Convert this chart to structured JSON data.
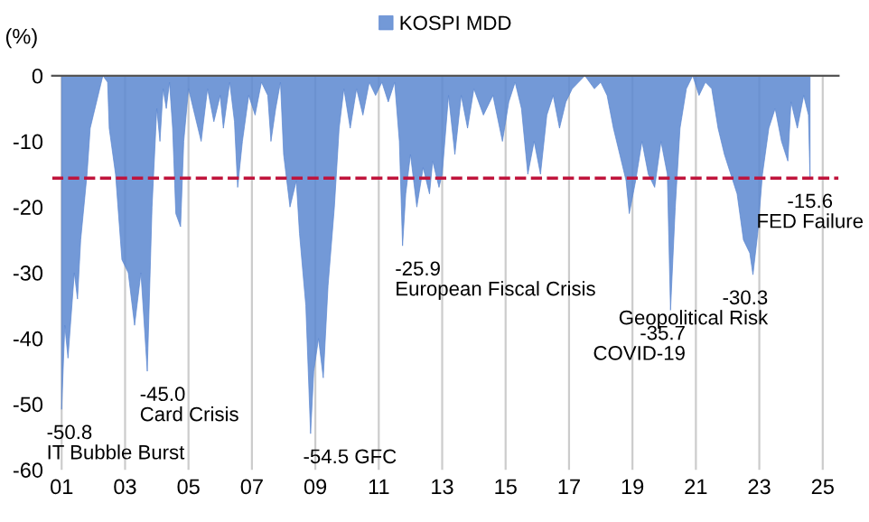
{
  "chart_data": {
    "type": "area",
    "ylabel": "(%)",
    "x": [
      2001.0,
      2001.1,
      2001.2,
      2001.4,
      2001.5,
      2001.6,
      2001.8,
      2001.9,
      2002.0,
      2002.2,
      2002.3,
      2002.45,
      2002.5,
      2002.7,
      2002.9,
      2003.1,
      2003.3,
      2003.5,
      2003.7,
      2003.85,
      2004.0,
      2004.1,
      2004.2,
      2004.3,
      2004.4,
      2004.5,
      2004.6,
      2004.75,
      2004.85,
      2005.0,
      2005.2,
      2005.4,
      2005.6,
      2005.8,
      2006.0,
      2006.1,
      2006.3,
      2006.45,
      2006.55,
      2006.7,
      2006.9,
      2007.1,
      2007.3,
      2007.5,
      2007.6,
      2007.75,
      2007.9,
      2008.0,
      2008.2,
      2008.4,
      2008.5,
      2008.7,
      2008.85,
      2008.95,
      2009.1,
      2009.25,
      2009.4,
      2009.6,
      2009.75,
      2009.9,
      2010.1,
      2010.3,
      2010.5,
      2010.7,
      2010.9,
      2011.1,
      2011.3,
      2011.5,
      2011.65,
      2011.75,
      2011.85,
      2012.0,
      2012.2,
      2012.4,
      2012.6,
      2012.7,
      2012.9,
      2013.0,
      2013.2,
      2013.4,
      2013.6,
      2013.8,
      2014.0,
      2014.3,
      2014.6,
      2014.9,
      2015.1,
      2015.3,
      2015.5,
      2015.7,
      2015.9,
      2016.1,
      2016.3,
      2016.5,
      2016.7,
      2016.9,
      2017.1,
      2017.3,
      2017.5,
      2017.8,
      2018.0,
      2018.2,
      2018.4,
      2018.6,
      2018.8,
      2018.9,
      2019.1,
      2019.3,
      2019.5,
      2019.7,
      2019.9,
      2020.1,
      2020.2,
      2020.35,
      2020.5,
      2020.7,
      2020.9,
      2021.1,
      2021.3,
      2021.5,
      2021.7,
      2021.9,
      2022.1,
      2022.3,
      2022.5,
      2022.7,
      2022.8,
      2022.95,
      2023.1,
      2023.3,
      2023.5,
      2023.7,
      2023.9,
      2024.0,
      2024.2,
      2024.4,
      2024.55,
      2024.6
    ],
    "series": [
      {
        "name": "KOSPI MDD",
        "color": "#5b87d0",
        "values": [
          -50.8,
          -38,
          -43,
          -30,
          -34,
          -25,
          -15,
          -8,
          -6,
          -2,
          0,
          -1,
          -8,
          -15,
          -28,
          -30,
          -38,
          -30,
          -45,
          -20,
          -5,
          -10,
          -2,
          -5,
          -1,
          -8,
          -21,
          -23,
          -10,
          -2,
          -6,
          -10,
          -2,
          -7,
          -3,
          -8,
          -1,
          -7,
          -17,
          -10,
          -3,
          -6,
          -1,
          -3,
          -10,
          -5,
          -1,
          -12,
          -20,
          -16,
          -24,
          -35,
          -54.5,
          -45,
          -40,
          -46,
          -32,
          -20,
          -8,
          -2,
          -8,
          -2,
          -6,
          -1,
          -3,
          -1,
          -4,
          -1,
          -10,
          -25.9,
          -18,
          -12,
          -20,
          -14,
          -18,
          -13,
          -17,
          -15,
          -3,
          -12,
          -3,
          -8,
          -2,
          -6,
          -3,
          -10,
          -4,
          -1,
          -5,
          -15,
          -10,
          -15,
          -6,
          -3,
          -8,
          -4,
          -2,
          -1,
          0,
          -2,
          -1,
          -3,
          -8,
          -12,
          -16,
          -21,
          -16,
          -10,
          -15,
          -17,
          -10,
          -15,
          -35.7,
          -20,
          -8,
          -2,
          0,
          -3,
          -1,
          -2,
          -8,
          -12,
          -15,
          -18,
          -25,
          -27,
          -30.3,
          -24,
          -15,
          -8,
          -5,
          -10,
          -13,
          -4,
          -8,
          -3,
          -6,
          -15.6
        ]
      }
    ],
    "xlim": [
      2000.7,
      2025.5
    ],
    "xticks": [
      {
        "value": 2001,
        "label": "01"
      },
      {
        "value": 2003,
        "label": "03"
      },
      {
        "value": 2005,
        "label": "05"
      },
      {
        "value": 2007,
        "label": "07"
      },
      {
        "value": 2009,
        "label": "09"
      },
      {
        "value": 2011,
        "label": "11"
      },
      {
        "value": 2013,
        "label": "13"
      },
      {
        "value": 2015,
        "label": "15"
      },
      {
        "value": 2017,
        "label": "17"
      },
      {
        "value": 2019,
        "label": "19"
      },
      {
        "value": 2021,
        "label": "21"
      },
      {
        "value": 2023,
        "label": "23"
      },
      {
        "value": 2025,
        "label": "25"
      }
    ],
    "ylim": [
      -60,
      0
    ],
    "yticks": [
      0,
      -10,
      -20,
      -30,
      -40,
      -50,
      -60
    ],
    "ref_lines": [
      {
        "axis": "y",
        "value": -15.6,
        "color": "#c0143c",
        "line_style": "dashed"
      }
    ],
    "annotations": [
      {
        "text": "-50.8\nIT Bubble Burst",
        "x": 2001.0,
        "y": -50.8
      },
      {
        "text": "-45.0\nCard Crisis",
        "x": 2003.7,
        "y": -45.0
      },
      {
        "text": "-54.5 GFC",
        "x": 2008.85,
        "y": -54.5
      },
      {
        "text": "-25.9\nEuropean Fiscal Crisis",
        "x": 2011.75,
        "y": -25.9
      },
      {
        "text": "-35.7\nCOVID-19",
        "x": 2020.2,
        "y": -35.7
      },
      {
        "text": "-30.3\nGeopolitical Risk",
        "x": 2022.8,
        "y": -30.3
      },
      {
        "text": "-15.6\nFED Failure",
        "x": 2024.6,
        "y": -15.6
      }
    ],
    "grid": "x",
    "legend": "top"
  }
}
